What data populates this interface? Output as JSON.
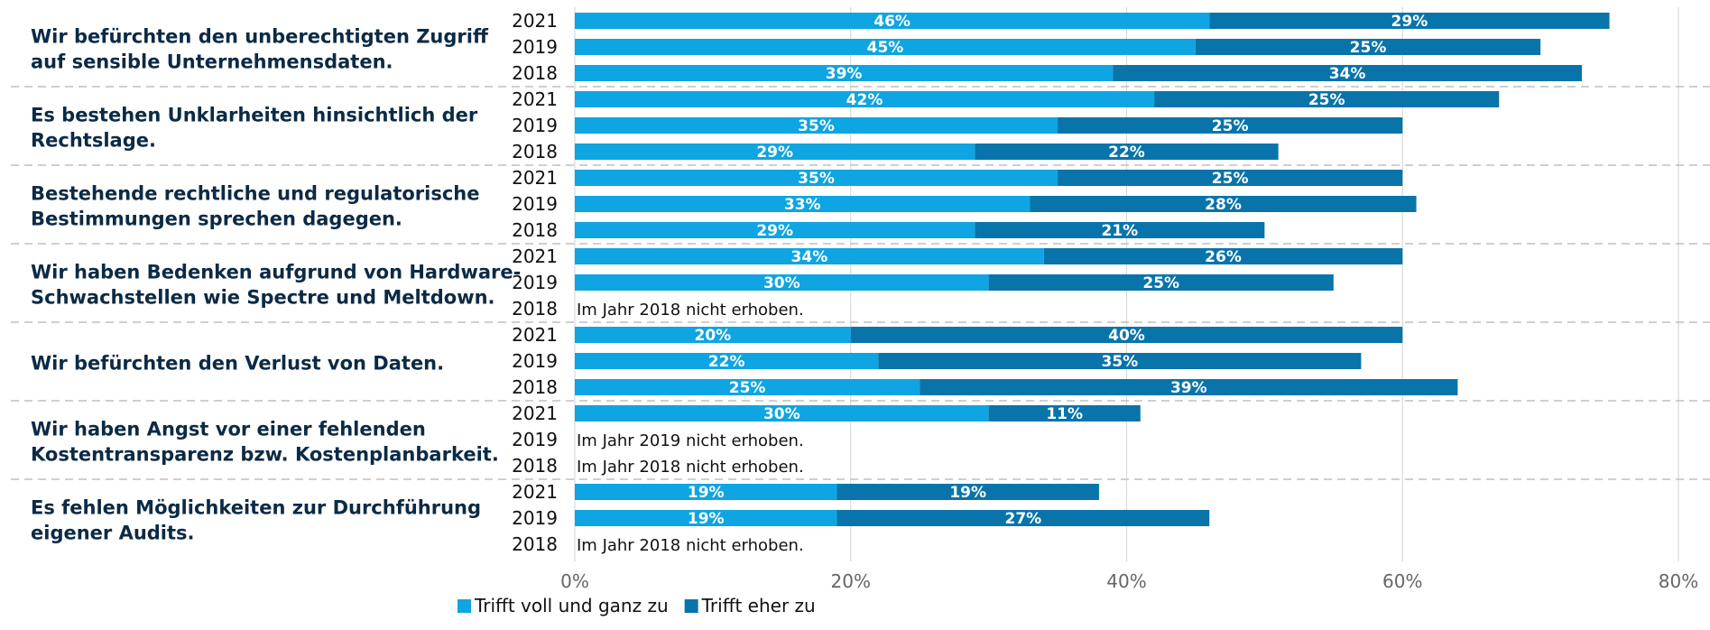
{
  "chart_data": {
    "type": "bar",
    "orientation": "horizontal",
    "stacked": true,
    "xlim": [
      0,
      80
    ],
    "x_ticks": [
      "0%",
      "20%",
      "40%",
      "60%",
      "80%"
    ],
    "x_tick_values": [
      0,
      20,
      40,
      60,
      80
    ],
    "grid": "vertical",
    "legend_position": "bottom-left",
    "colors": {
      "series1": "#0ea5e2",
      "series2": "#0874aa",
      "grid": "#d9d9d9",
      "separator": "#bfbfbf"
    },
    "series": [
      {
        "name": "Trifft voll und ganz zu"
      },
      {
        "name": "Trifft eher zu"
      }
    ],
    "groups": [
      {
        "label_lines": [
          "Wir befürchten den unberechtigten Zugriff",
          "auf sensible Unternehmensdaten."
        ],
        "rows": [
          {
            "year": "2021",
            "values": [
              46,
              29
            ],
            "labels": [
              "46%",
              "29%"
            ]
          },
          {
            "year": "2019",
            "values": [
              45,
              25
            ],
            "labels": [
              "45%",
              "25%"
            ]
          },
          {
            "year": "2018",
            "values": [
              39,
              34
            ],
            "labels": [
              "39%",
              "34%"
            ]
          }
        ]
      },
      {
        "label_lines": [
          "Es bestehen Unklarheiten hinsichtlich der",
          "Rechtslage."
        ],
        "rows": [
          {
            "year": "2021",
            "values": [
              42,
              25
            ],
            "labels": [
              "42%",
              "25%"
            ]
          },
          {
            "year": "2019",
            "values": [
              35,
              25
            ],
            "labels": [
              "35%",
              "25%"
            ]
          },
          {
            "year": "2018",
            "values": [
              29,
              22
            ],
            "labels": [
              "29%",
              "22%"
            ]
          }
        ]
      },
      {
        "label_lines": [
          "Bestehende rechtliche und regulatorische",
          "Bestimmungen sprechen dagegen."
        ],
        "rows": [
          {
            "year": "2021",
            "values": [
              35,
              25
            ],
            "labels": [
              "35%",
              "25%"
            ]
          },
          {
            "year": "2019",
            "values": [
              33,
              28
            ],
            "labels": [
              "33%",
              "28%"
            ]
          },
          {
            "year": "2018",
            "values": [
              29,
              21
            ],
            "labels": [
              "29%",
              "21%"
            ]
          }
        ]
      },
      {
        "label_lines": [
          "Wir haben Bedenken aufgrund von Hardware-",
          "Schwachstellen wie Spectre und Meltdown."
        ],
        "rows": [
          {
            "year": "2021",
            "values": [
              34,
              26
            ],
            "labels": [
              "34%",
              "26%"
            ]
          },
          {
            "year": "2019",
            "values": [
              30,
              25
            ],
            "labels": [
              "30%",
              "25%"
            ]
          },
          {
            "year": "2018",
            "values": null,
            "note": "Im Jahr 2018 nicht erhoben."
          }
        ]
      },
      {
        "label_lines": [
          "Wir befürchten den Verlust von Daten."
        ],
        "rows": [
          {
            "year": "2021",
            "values": [
              20,
              40
            ],
            "labels": [
              "20%",
              "40%"
            ]
          },
          {
            "year": "2019",
            "values": [
              22,
              35
            ],
            "labels": [
              "22%",
              "35%"
            ]
          },
          {
            "year": "2018",
            "values": [
              25,
              39
            ],
            "labels": [
              "25%",
              "39%"
            ]
          }
        ]
      },
      {
        "label_lines": [
          "Wir haben Angst vor einer fehlenden",
          "Kostentransparenz bzw. Kostenplanbarkeit."
        ],
        "rows": [
          {
            "year": "2021",
            "values": [
              30,
              11
            ],
            "labels": [
              "30%",
              "11%"
            ]
          },
          {
            "year": "2019",
            "values": null,
            "note": "Im Jahr 2019 nicht erhoben."
          },
          {
            "year": "2018",
            "values": null,
            "note": "Im Jahr 2018 nicht erhoben."
          }
        ]
      },
      {
        "label_lines": [
          "Es fehlen Möglichkeiten zur Durchführung",
          "eigener Audits."
        ],
        "rows": [
          {
            "year": "2021",
            "values": [
              19,
              19
            ],
            "labels": [
              "19%",
              "19%"
            ]
          },
          {
            "year": "2019",
            "values": [
              19,
              27
            ],
            "labels": [
              "19%",
              "27%"
            ]
          },
          {
            "year": "2018",
            "values": null,
            "note": "Im Jahr 2018 nicht erhoben."
          }
        ]
      }
    ]
  }
}
